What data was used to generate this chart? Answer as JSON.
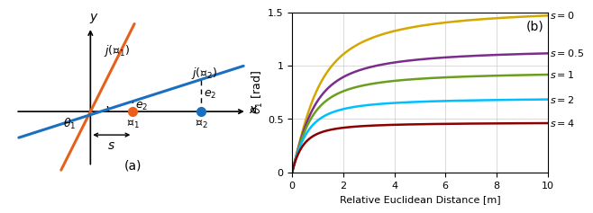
{
  "ylabel_b": "$\\theta_1$ [rad]",
  "xlabel_b": "Relative Euclidean Distance [m]",
  "xlim_b": [
    0,
    10
  ],
  "ylim_b": [
    0,
    1.5
  ],
  "yticks_b": [
    0,
    0.5,
    1.0,
    1.5
  ],
  "xticks_b": [
    0,
    2,
    4,
    6,
    8,
    10
  ],
  "curves": [
    {
      "s": 0,
      "label": "$s = 0$",
      "color": "#D4A800"
    },
    {
      "s": 0.5,
      "label": "$s = 0.5$",
      "color": "#7B2D8B"
    },
    {
      "s": 1,
      "label": "$s = 1$",
      "color": "#6B9E1E"
    },
    {
      "s": 2,
      "label": "$s = 2$",
      "color": "#00BFFF"
    },
    {
      "s": 4,
      "label": "$s = 4$",
      "color": "#8B0000"
    }
  ],
  "line_orange": "#E8601C",
  "line_blue": "#1A6FBF",
  "dot_orange": "#E8601C",
  "dot_blue": "#1A6FBF"
}
